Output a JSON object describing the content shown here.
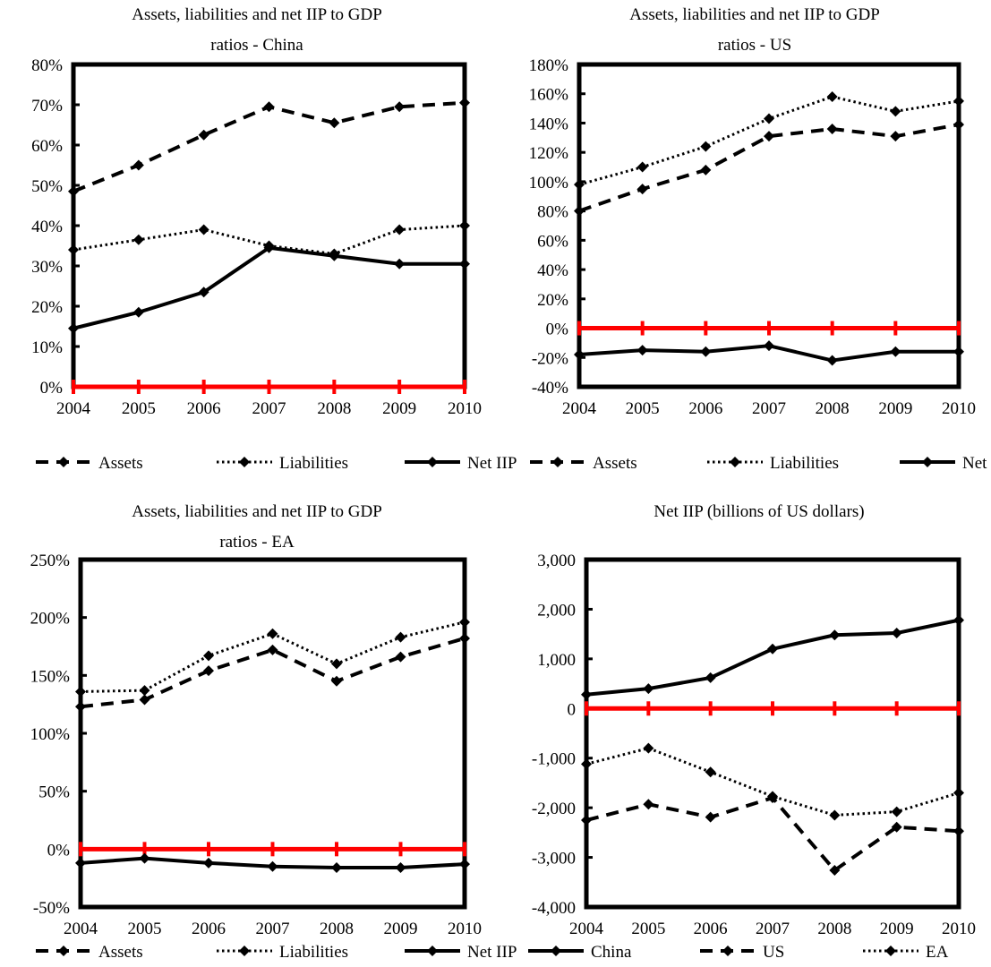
{
  "colors": {
    "line": "#000000",
    "zero_line": "#ff0000",
    "frame": "#000000",
    "background": "#ffffff"
  },
  "chart_data": [
    {
      "id": "china",
      "type": "line",
      "title_lines": [
        "Assets, liabilities and net IIP to GDP",
        "ratios - China"
      ],
      "x": [
        "2004",
        "2005",
        "2006",
        "2007",
        "2008",
        "2009",
        "2010"
      ],
      "ylim": [
        0,
        80
      ],
      "yticks": [
        0,
        10,
        20,
        30,
        40,
        50,
        60,
        70,
        80
      ],
      "ytick_labels": [
        "0%",
        "10%",
        "20%",
        "30%",
        "40%",
        "50%",
        "60%",
        "70%",
        "80%"
      ],
      "series": [
        {
          "name": "Assets",
          "style": "dashed",
          "values": [
            48.5,
            55,
            62.5,
            69.5,
            65.5,
            69.5,
            70.5
          ]
        },
        {
          "name": "Liabilities",
          "style": "dotted",
          "values": [
            34,
            36.5,
            39,
            35,
            33,
            39,
            40
          ]
        },
        {
          "name": "Net IIP",
          "style": "solid",
          "values": [
            14.5,
            18.5,
            23.5,
            34.5,
            32.5,
            30.5,
            30.5
          ]
        }
      ],
      "zero_line": 0,
      "legend": "bottom"
    },
    {
      "id": "us",
      "type": "line",
      "title_lines": [
        "Assets, liabilities and net IIP to GDP",
        "ratios - US"
      ],
      "x": [
        "2004",
        "2005",
        "2006",
        "2007",
        "2008",
        "2009",
        "2010"
      ],
      "ylim": [
        -40,
        180
      ],
      "yticks": [
        -40,
        -20,
        0,
        20,
        40,
        60,
        80,
        100,
        120,
        140,
        160,
        180
      ],
      "ytick_labels": [
        "-40%",
        "-20%",
        "0%",
        "20%",
        "40%",
        "60%",
        "80%",
        "100%",
        "120%",
        "140%",
        "160%",
        "180%"
      ],
      "series": [
        {
          "name": "Assets",
          "style": "dashed",
          "values": [
            80,
            95,
            108,
            131,
            136,
            131,
            139
          ]
        },
        {
          "name": "Liabilities",
          "style": "dotted",
          "values": [
            98,
            110,
            124,
            143,
            158,
            148,
            155
          ]
        },
        {
          "name": "Net IIP",
          "style": "solid",
          "values": [
            -18,
            -15,
            -16,
            -12,
            -22,
            -16,
            -16
          ]
        }
      ],
      "zero_line": 0,
      "legend": "bottom"
    },
    {
      "id": "ea",
      "type": "line",
      "title_lines": [
        "Assets, liabilities and net IIP to GDP",
        "ratios - EA"
      ],
      "x": [
        "2004",
        "2005",
        "2006",
        "2007",
        "2008",
        "2009",
        "2010"
      ],
      "ylim": [
        -50,
        250
      ],
      "yticks": [
        -50,
        0,
        50,
        100,
        150,
        200,
        250
      ],
      "ytick_labels": [
        "-50%",
        "0%",
        "50%",
        "100%",
        "150%",
        "200%",
        "250%"
      ],
      "series": [
        {
          "name": "Assets",
          "style": "dashed",
          "values": [
            123,
            129,
            154,
            172,
            145,
            166,
            182
          ]
        },
        {
          "name": "Liabilities",
          "style": "dotted",
          "values": [
            136,
            137,
            167,
            186,
            160,
            183,
            196
          ]
        },
        {
          "name": "Net IIP",
          "style": "solid",
          "values": [
            -12,
            -8,
            -12,
            -15,
            -16,
            -16,
            -13
          ]
        }
      ],
      "zero_line": 0,
      "legend": "bottom"
    },
    {
      "id": "netiip",
      "type": "line",
      "title_lines": [
        "Net IIP (billions of US dollars)"
      ],
      "x": [
        "2004",
        "2005",
        "2006",
        "2007",
        "2008",
        "2009",
        "2010"
      ],
      "ylim": [
        -4000,
        3000
      ],
      "yticks": [
        -4000,
        -3000,
        -2000,
        -1000,
        0,
        1000,
        2000,
        3000
      ],
      "ytick_labels": [
        "-4,000",
        "-3,000",
        "-2,000",
        "-1,000",
        "0",
        "1,000",
        "2,000",
        "3,000"
      ],
      "series": [
        {
          "name": "China",
          "style": "solid",
          "values": [
            280,
            400,
            620,
            1200,
            1480,
            1520,
            1780
          ]
        },
        {
          "name": "US",
          "style": "dashed",
          "values": [
            -2250,
            -1930,
            -2190,
            -1800,
            -3260,
            -2390,
            -2470
          ]
        },
        {
          "name": "EA",
          "style": "dotted",
          "values": [
            -1120,
            -800,
            -1280,
            -1770,
            -2150,
            -2080,
            -1700
          ]
        }
      ],
      "zero_line": 0,
      "legend": "bottom"
    }
  ]
}
